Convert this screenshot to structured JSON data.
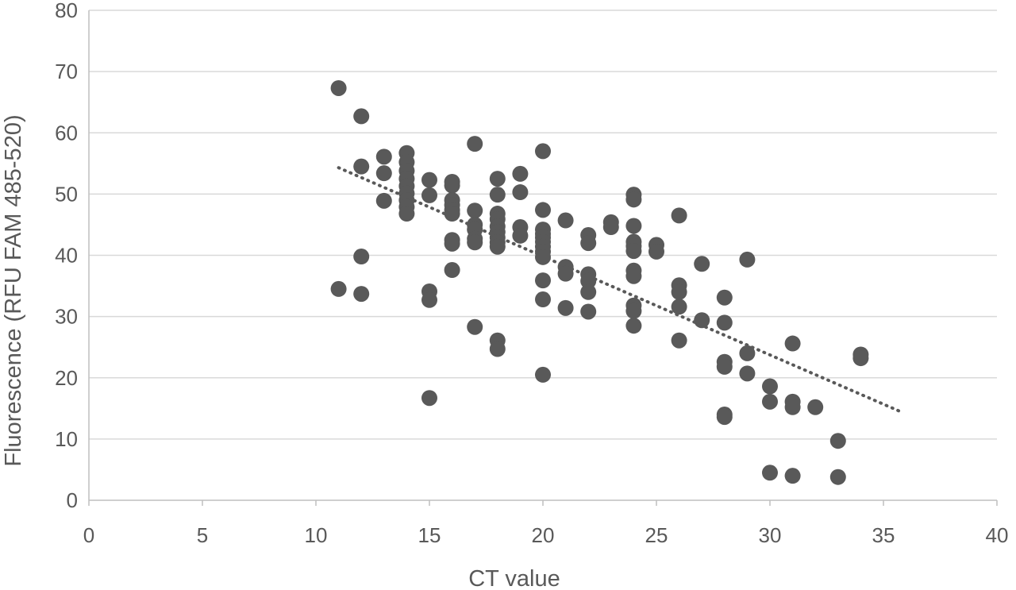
{
  "chart_data": {
    "type": "scatter",
    "xlabel": "CT value",
    "ylabel": "Fluorescence (RFU FAM 485-520)",
    "xlim": [
      0,
      40
    ],
    "ylim": [
      0,
      80
    ],
    "x_ticks": [
      "0",
      "5",
      "10",
      "15",
      "20",
      "25",
      "30",
      "35",
      "40"
    ],
    "y_ticks": [
      "0",
      "10",
      "20",
      "30",
      "40",
      "50",
      "60",
      "70",
      "80"
    ],
    "grid": "horizontal",
    "legend": "none",
    "colors": {
      "marker": "#595959",
      "trendline": "#595959",
      "grid": "#d9d9d9",
      "axis": "#bfbfbf",
      "text": "#595959"
    },
    "trendline": {
      "style": "dotted",
      "type": "linear",
      "from": [
        11,
        54.3
      ],
      "to": [
        35.8,
        14.4
      ]
    },
    "points": [
      [
        11,
        67.3
      ],
      [
        11,
        34.5
      ],
      [
        12,
        62.7
      ],
      [
        12,
        54.5
      ],
      [
        12,
        39.8
      ],
      [
        12,
        33.7
      ],
      [
        13,
        56.1
      ],
      [
        13,
        53.4
      ],
      [
        13,
        48.9
      ],
      [
        14,
        56.7
      ],
      [
        14,
        55.2
      ],
      [
        14,
        53.8
      ],
      [
        14,
        52.5
      ],
      [
        14,
        51.3
      ],
      [
        14,
        50.1
      ],
      [
        14,
        49.0
      ],
      [
        14,
        47.9
      ],
      [
        14,
        46.8
      ],
      [
        15,
        52.3
      ],
      [
        15,
        49.8
      ],
      [
        15,
        34.1
      ],
      [
        15,
        32.7
      ],
      [
        15,
        16.7
      ],
      [
        16,
        52.0
      ],
      [
        16,
        51.4
      ],
      [
        16,
        49.0
      ],
      [
        16,
        48.2
      ],
      [
        16,
        47.4
      ],
      [
        16,
        46.8
      ],
      [
        16,
        42.5
      ],
      [
        16,
        41.9
      ],
      [
        16,
        37.6
      ],
      [
        17,
        58.2
      ],
      [
        17,
        47.3
      ],
      [
        17,
        45.0
      ],
      [
        17,
        44.2
      ],
      [
        17,
        42.7
      ],
      [
        17,
        42.1
      ],
      [
        17,
        28.3
      ],
      [
        18,
        52.5
      ],
      [
        18,
        49.9
      ],
      [
        18,
        46.8
      ],
      [
        18,
        45.9
      ],
      [
        18,
        44.7
      ],
      [
        18,
        43.8
      ],
      [
        18,
        42.9
      ],
      [
        18,
        42.1
      ],
      [
        18,
        41.4
      ],
      [
        18,
        26.1
      ],
      [
        18,
        24.7
      ],
      [
        19,
        53.3
      ],
      [
        19,
        50.3
      ],
      [
        19,
        44.6
      ],
      [
        19,
        43.2
      ],
      [
        20,
        57.0
      ],
      [
        20,
        47.4
      ],
      [
        20,
        44.2
      ],
      [
        20,
        43.5
      ],
      [
        20,
        42.9
      ],
      [
        20,
        42.2
      ],
      [
        20,
        41.4
      ],
      [
        20,
        40.6
      ],
      [
        20,
        39.7
      ],
      [
        20,
        35.9
      ],
      [
        20,
        32.8
      ],
      [
        20,
        20.5
      ],
      [
        21,
        45.7
      ],
      [
        21,
        38.1
      ],
      [
        21,
        37.0
      ],
      [
        21,
        31.4
      ],
      [
        22,
        43.3
      ],
      [
        22,
        42.0
      ],
      [
        22,
        36.9
      ],
      [
        22,
        35.8
      ],
      [
        22,
        34.0
      ],
      [
        22,
        30.8
      ],
      [
        23,
        45.4
      ],
      [
        23,
        44.6
      ],
      [
        24,
        49.9
      ],
      [
        24,
        49.1
      ],
      [
        24,
        44.8
      ],
      [
        24,
        42.2
      ],
      [
        24,
        41.5
      ],
      [
        24,
        40.7
      ],
      [
        24,
        37.5
      ],
      [
        24,
        36.6
      ],
      [
        24,
        31.8
      ],
      [
        24,
        30.9
      ],
      [
        24,
        28.5
      ],
      [
        25,
        41.7
      ],
      [
        25,
        40.6
      ],
      [
        26,
        46.5
      ],
      [
        26,
        35.1
      ],
      [
        26,
        34.0
      ],
      [
        26,
        31.6
      ],
      [
        26,
        26.1
      ],
      [
        27,
        38.6
      ],
      [
        27,
        29.4
      ],
      [
        28,
        33.1
      ],
      [
        28,
        29.0
      ],
      [
        28,
        22.6
      ],
      [
        28,
        21.8
      ],
      [
        28,
        14.0
      ],
      [
        28,
        13.6
      ],
      [
        29,
        39.3
      ],
      [
        29,
        24.0
      ],
      [
        29,
        20.7
      ],
      [
        30,
        18.6
      ],
      [
        30,
        16.1
      ],
      [
        30,
        4.5
      ],
      [
        31,
        25.6
      ],
      [
        31,
        16.1
      ],
      [
        31,
        15.2
      ],
      [
        31,
        4.0
      ],
      [
        32,
        15.2
      ],
      [
        33,
        9.7
      ],
      [
        33,
        3.8
      ],
      [
        34,
        23.8
      ],
      [
        34,
        23.2
      ]
    ]
  }
}
